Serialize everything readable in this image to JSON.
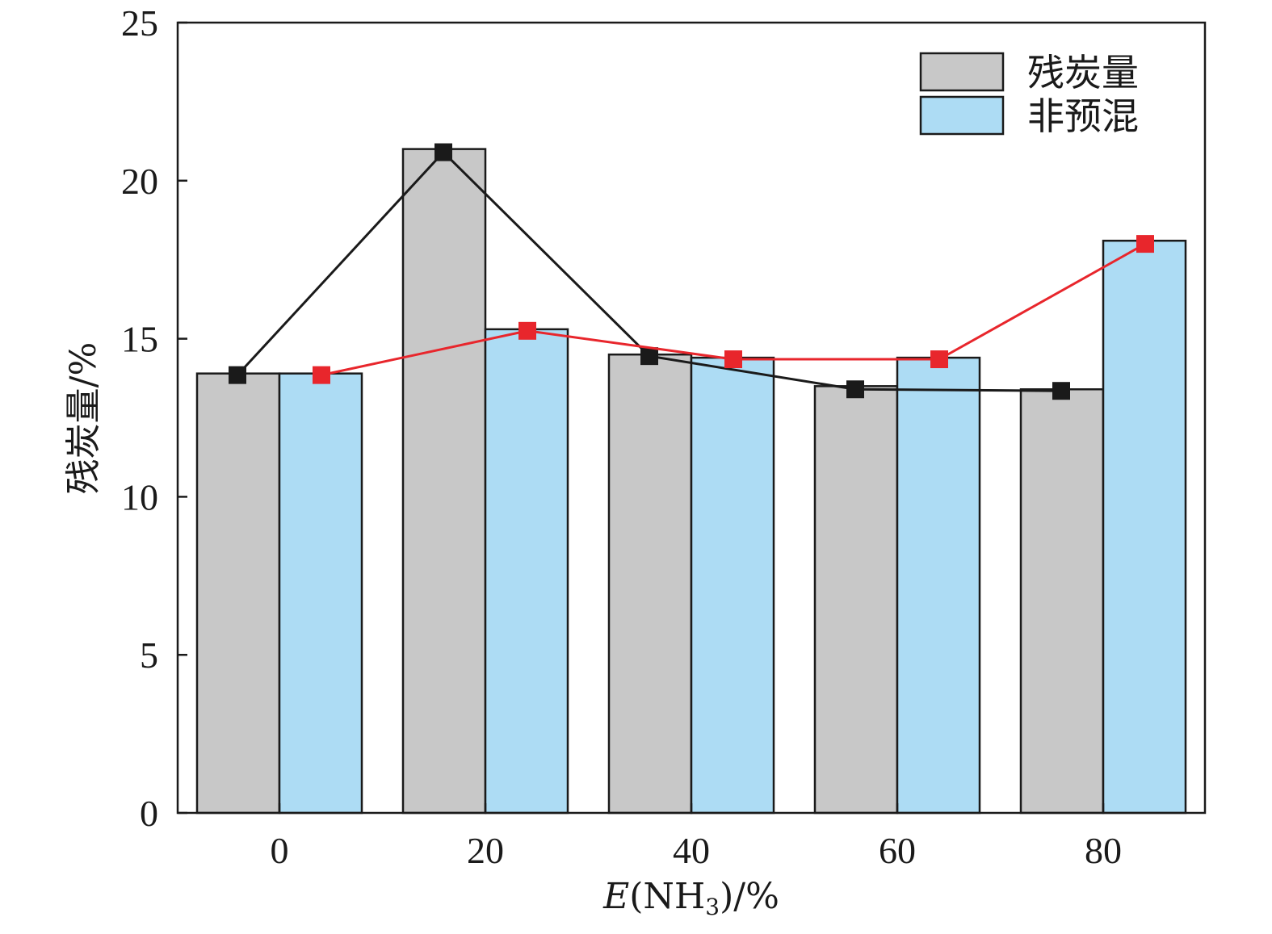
{
  "chart_data": {
    "type": "bar",
    "categories": [
      "0",
      "20",
      "40",
      "60",
      "80"
    ],
    "series": [
      {
        "name": "残炭量",
        "values": [
          13.9,
          21.0,
          14.5,
          13.5,
          13.4
        ],
        "color": "#c8c8c8"
      },
      {
        "name": "非预混",
        "values": [
          13.9,
          15.3,
          14.4,
          14.4,
          18.1
        ],
        "color": "#addcf4"
      }
    ],
    "lines": [
      {
        "values": [
          13.85,
          20.9,
          14.45,
          13.4,
          13.35
        ],
        "color": "#1a1a1a"
      },
      {
        "values": [
          13.85,
          15.25,
          14.35,
          14.35,
          18.0
        ],
        "color": "#e8262c"
      }
    ],
    "xlabel": {
      "italic": "E",
      "pre": "(NH",
      "sub": "3",
      "post": ")/%"
    },
    "ylabel": "残炭量/%",
    "yticks": [
      "0",
      "5",
      "10",
      "15",
      "20",
      "25"
    ],
    "ylim": [
      0,
      25
    ],
    "legend_position": "top-right",
    "grid": false,
    "frame_color": "#1a1a1a"
  }
}
